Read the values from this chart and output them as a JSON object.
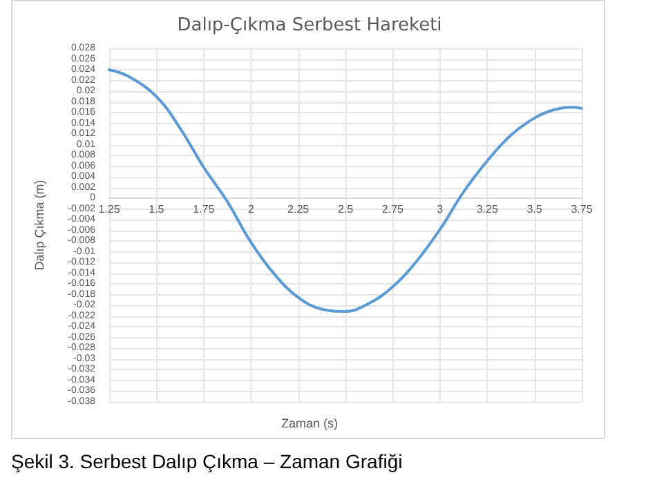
{
  "chart_data": {
    "type": "line",
    "title": "Dalıp-Çıkma Serbest Hareketi",
    "xlabel": "Zaman (s)",
    "ylabel": "Dalıp Çıkma (m)",
    "annotations": [
      "Şekil 3. Serbest Dalıp Çıkma – Zaman Grafiği"
    ],
    "x": [
      1.25,
      1.35,
      1.5,
      1.625,
      1.75,
      1.875,
      2,
      2.125,
      2.25,
      2.375,
      2.5,
      2.625,
      2.75,
      2.875,
      3,
      3.125,
      3.25,
      3.375,
      3.5,
      3.6,
      3.7,
      3.75
    ],
    "series": [
      {
        "color": "#5b9bd5",
        "values": [
          0.024,
          0.0228,
          0.019,
          0.0131,
          0.0058,
          -0.0006,
          -0.0082,
          -0.0142,
          -0.0185,
          -0.0207,
          -0.0211,
          -0.0196,
          -0.0165,
          -0.0118,
          -0.0058,
          0.0012,
          0.007,
          0.0118,
          0.015,
          0.0165,
          0.017,
          0.0168
        ]
      }
    ],
    "xlim": [
      1.25,
      3.75
    ],
    "xticks": [
      1.25,
      1.5,
      1.75,
      2,
      2.25,
      2.5,
      2.75,
      3,
      3.25,
      3.5,
      3.75
    ],
    "ylim": [
      -0.038,
      0.028
    ],
    "yticks": [
      0.028,
      0.026,
      0.024,
      0.022,
      0.02,
      0.018,
      0.016,
      0.014,
      0.012,
      0.01,
      0.008,
      0.006,
      0.004,
      0.002,
      0,
      -0.002,
      -0.004,
      -0.006,
      -0.008,
      -0.01,
      -0.012,
      -0.014,
      -0.016,
      -0.018,
      -0.02,
      -0.022,
      -0.024,
      -0.026,
      -0.028,
      -0.03,
      -0.032,
      -0.034,
      -0.036,
      -0.038
    ],
    "grid": true,
    "marker": "none",
    "line_style": "solid"
  }
}
